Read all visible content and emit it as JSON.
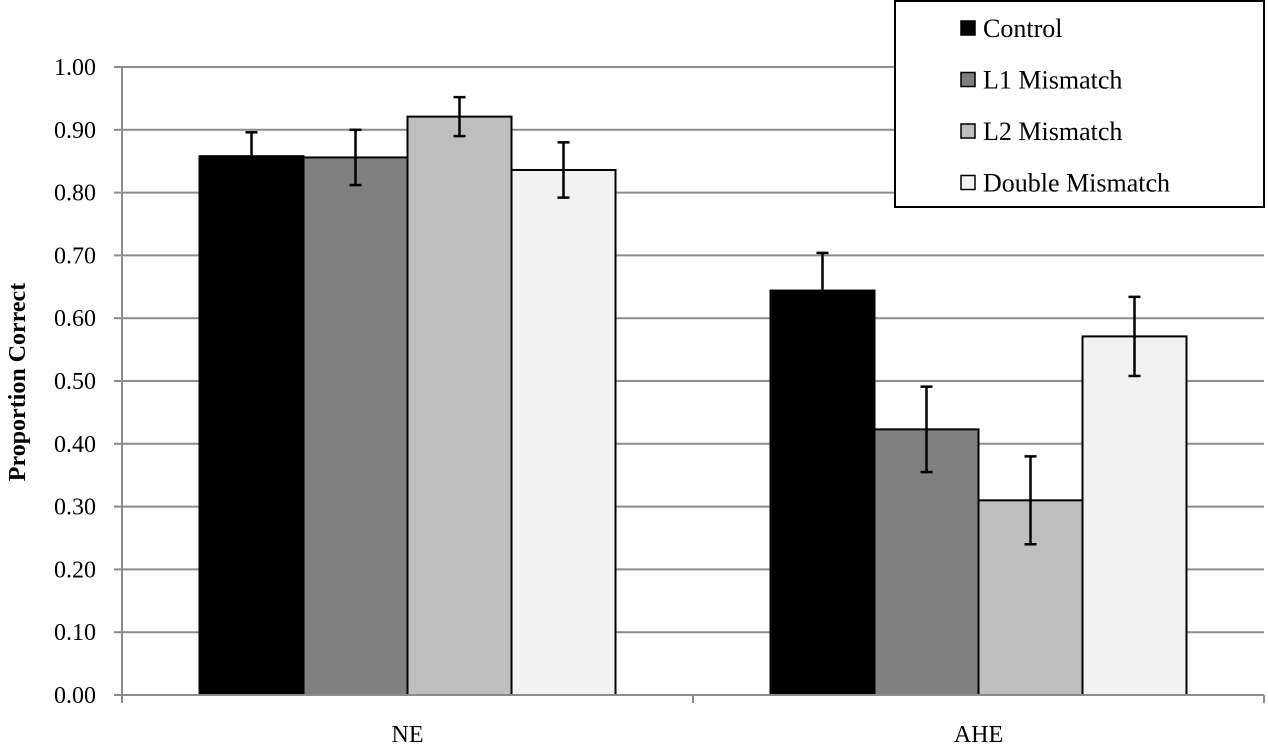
{
  "chart_data": {
    "type": "bar",
    "categories": [
      "NE",
      "AHE"
    ],
    "series": [
      {
        "name": "Control",
        "color": "#000000",
        "values": [
          0.858,
          0.644
        ],
        "errors": [
          0.038,
          0.06
        ]
      },
      {
        "name": "L1 Mismatch",
        "color": "#808080",
        "values": [
          0.856,
          0.423
        ],
        "errors": [
          0.044,
          0.068
        ]
      },
      {
        "name": "L2 Mismatch",
        "color": "#bfbfbf",
        "values": [
          0.921,
          0.31
        ],
        "errors": [
          0.031,
          0.07
        ]
      },
      {
        "name": "Double Mismatch",
        "color": "#f2f2f2",
        "values": [
          0.836,
          0.571
        ],
        "errors": [
          0.044,
          0.063
        ]
      }
    ],
    "ylabel": "Proportion  Correct",
    "xlabel": "",
    "ylim": [
      0,
      1
    ],
    "yticks": [
      "0.00",
      "0.10",
      "0.20",
      "0.30",
      "0.40",
      "0.50",
      "0.60",
      "0.70",
      "0.80",
      "0.90",
      "1.00"
    ],
    "grid": true,
    "legend_position": "top-right"
  }
}
